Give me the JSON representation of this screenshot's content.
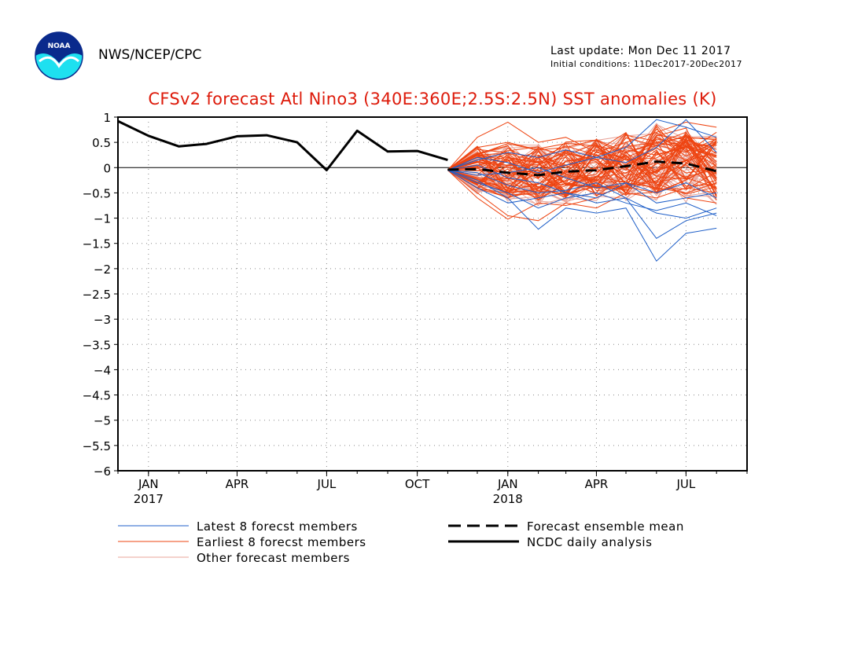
{
  "header": {
    "agency": "NWS/NCEP/CPC",
    "last_update": "Last update: Mon Dec 11 2017",
    "initial_conditions": "Initial conditions: 11Dec2017-20Dec2017",
    "logo_text": "NOAA"
  },
  "colors": {
    "title": "#dd1a0a",
    "latest": "#1f5fc8",
    "earliest": "#ee4411",
    "other": "#e8a49a",
    "analysis": "#000000"
  },
  "chart_data": {
    "type": "line",
    "title": "CFSv2 forecast Atl Nino3 (340E:360E;2.5S:2.5N) SST anomalies (K)",
    "ylim": [
      -6,
      1
    ],
    "yticks": [
      1,
      0.5,
      0,
      -0.5,
      -1,
      -1.5,
      -2,
      -2.5,
      -3,
      -3.5,
      -4,
      -4.5,
      -5,
      -5.5,
      -6
    ],
    "ytick_labels": [
      "1",
      "0.5",
      "0",
      "−0.5",
      "−1",
      "−1.5",
      "−2",
      "−2.5",
      "−3",
      "−3.5",
      "−4",
      "−4.5",
      "−5",
      "−5.5",
      "−6"
    ],
    "xlim": [
      "2016-12-01",
      "2018-09-01"
    ],
    "xticks": [
      {
        "date": "2017-01-01",
        "label": "JAN",
        "year": "2017"
      },
      {
        "date": "2017-04-01",
        "label": "APR",
        "year": ""
      },
      {
        "date": "2017-07-01",
        "label": "JUL",
        "year": ""
      },
      {
        "date": "2017-10-01",
        "label": "OCT",
        "year": ""
      },
      {
        "date": "2018-01-01",
        "label": "JAN",
        "year": "2018"
      },
      {
        "date": "2018-04-01",
        "label": "APR",
        "year": ""
      },
      {
        "date": "2018-07-01",
        "label": "JUL",
        "year": ""
      }
    ],
    "grid": true,
    "zero_line": true,
    "analysis": {
      "name": "NCDC daily analysis",
      "x": [
        "2016-12-01",
        "2017-01-01",
        "2017-02-01",
        "2017-03-01",
        "2017-04-01",
        "2017-05-01",
        "2017-06-01",
        "2017-07-01",
        "2017-08-01",
        "2017-09-01",
        "2017-10-01",
        "2017-11-01"
      ],
      "y": [
        0.92,
        0.63,
        0.42,
        0.47,
        0.62,
        0.64,
        0.5,
        -0.05,
        0.73,
        0.32,
        0.33,
        0.15
      ]
    },
    "ensemble_mean": {
      "name": "Forecast ensemble mean",
      "x": [
        "2017-11-01",
        "2017-12-01",
        "2018-01-01",
        "2018-02-01",
        "2018-03-01",
        "2018-04-01",
        "2018-05-01",
        "2018-06-01",
        "2018-07-01",
        "2018-08-01"
      ],
      "y": [
        -0.04,
        -0.03,
        -0.1,
        -0.15,
        -0.08,
        -0.05,
        0.03,
        0.12,
        0.08,
        -0.07
      ]
    },
    "members": {
      "x": [
        "2017-11-01",
        "2017-12-01",
        "2018-01-01",
        "2018-02-01",
        "2018-03-01",
        "2018-04-01",
        "2018-05-01",
        "2018-06-01",
        "2018-07-01",
        "2018-08-01"
      ],
      "latest_name": "Latest 8 forecst members",
      "earliest_name": "Earliest 8 forecst members",
      "other_name": "Other forecast members",
      "latest": [
        [
          -0.05,
          -0.25,
          -0.6,
          -1.22,
          -0.8,
          -0.9,
          -0.8,
          -1.85,
          -1.3,
          -1.2
        ],
        [
          -0.05,
          -0.4,
          -0.7,
          -0.6,
          -0.5,
          -0.7,
          -0.6,
          -1.4,
          -1.05,
          -0.9
        ],
        [
          -0.05,
          0.05,
          -0.2,
          -0.3,
          -0.5,
          -0.6,
          -0.3,
          -0.7,
          -0.6,
          -0.5
        ],
        [
          -0.05,
          0.2,
          0.1,
          -0.1,
          0.05,
          0.2,
          0.4,
          0.95,
          0.8,
          0.6
        ],
        [
          -0.05,
          -0.1,
          -0.35,
          -0.5,
          -0.45,
          -0.3,
          -0.6,
          -0.9,
          -1.0,
          -0.8
        ],
        [
          -0.05,
          0.15,
          0.3,
          0.2,
          0.35,
          0.2,
          0.1,
          0.4,
          0.95,
          0.3
        ],
        [
          -0.05,
          -0.3,
          -0.5,
          -0.8,
          -0.6,
          -0.5,
          -0.7,
          -0.85,
          -0.7,
          -0.95
        ],
        [
          -0.05,
          -0.15,
          -0.1,
          0.0,
          -0.2,
          -0.4,
          -0.3,
          -0.5,
          -0.3,
          -0.6
        ]
      ],
      "earliest": [
        [
          -0.05,
          0.6,
          0.9,
          0.5,
          0.6,
          0.3,
          0.5,
          0.7,
          0.9,
          0.8
        ],
        [
          -0.05,
          -0.5,
          -0.95,
          -1.05,
          -0.7,
          -0.8,
          -0.5,
          -0.6,
          -0.4,
          -0.5
        ],
        [
          -0.05,
          0.4,
          0.5,
          0.35,
          0.4,
          0.55,
          0.3,
          0.5,
          0.6,
          0.55
        ],
        [
          -0.05,
          -0.6,
          -1.02,
          -0.7,
          -0.75,
          -0.6,
          -0.3,
          -0.4,
          -0.5,
          -0.3
        ],
        [
          -0.05,
          0.25,
          0.2,
          0.1,
          0.3,
          0.15,
          0.35,
          0.25,
          0.4,
          0.2
        ],
        [
          -0.05,
          -0.25,
          -0.4,
          -0.6,
          -0.35,
          -0.2,
          -0.1,
          0.1,
          -0.2,
          -0.4
        ],
        [
          -0.05,
          0.1,
          0.05,
          0.25,
          0.0,
          0.3,
          0.2,
          0.45,
          0.3,
          0.7
        ],
        [
          -0.05,
          -0.35,
          -0.6,
          -0.4,
          -0.55,
          -0.35,
          -0.45,
          -0.2,
          -0.6,
          -0.7
        ]
      ]
    }
  }
}
